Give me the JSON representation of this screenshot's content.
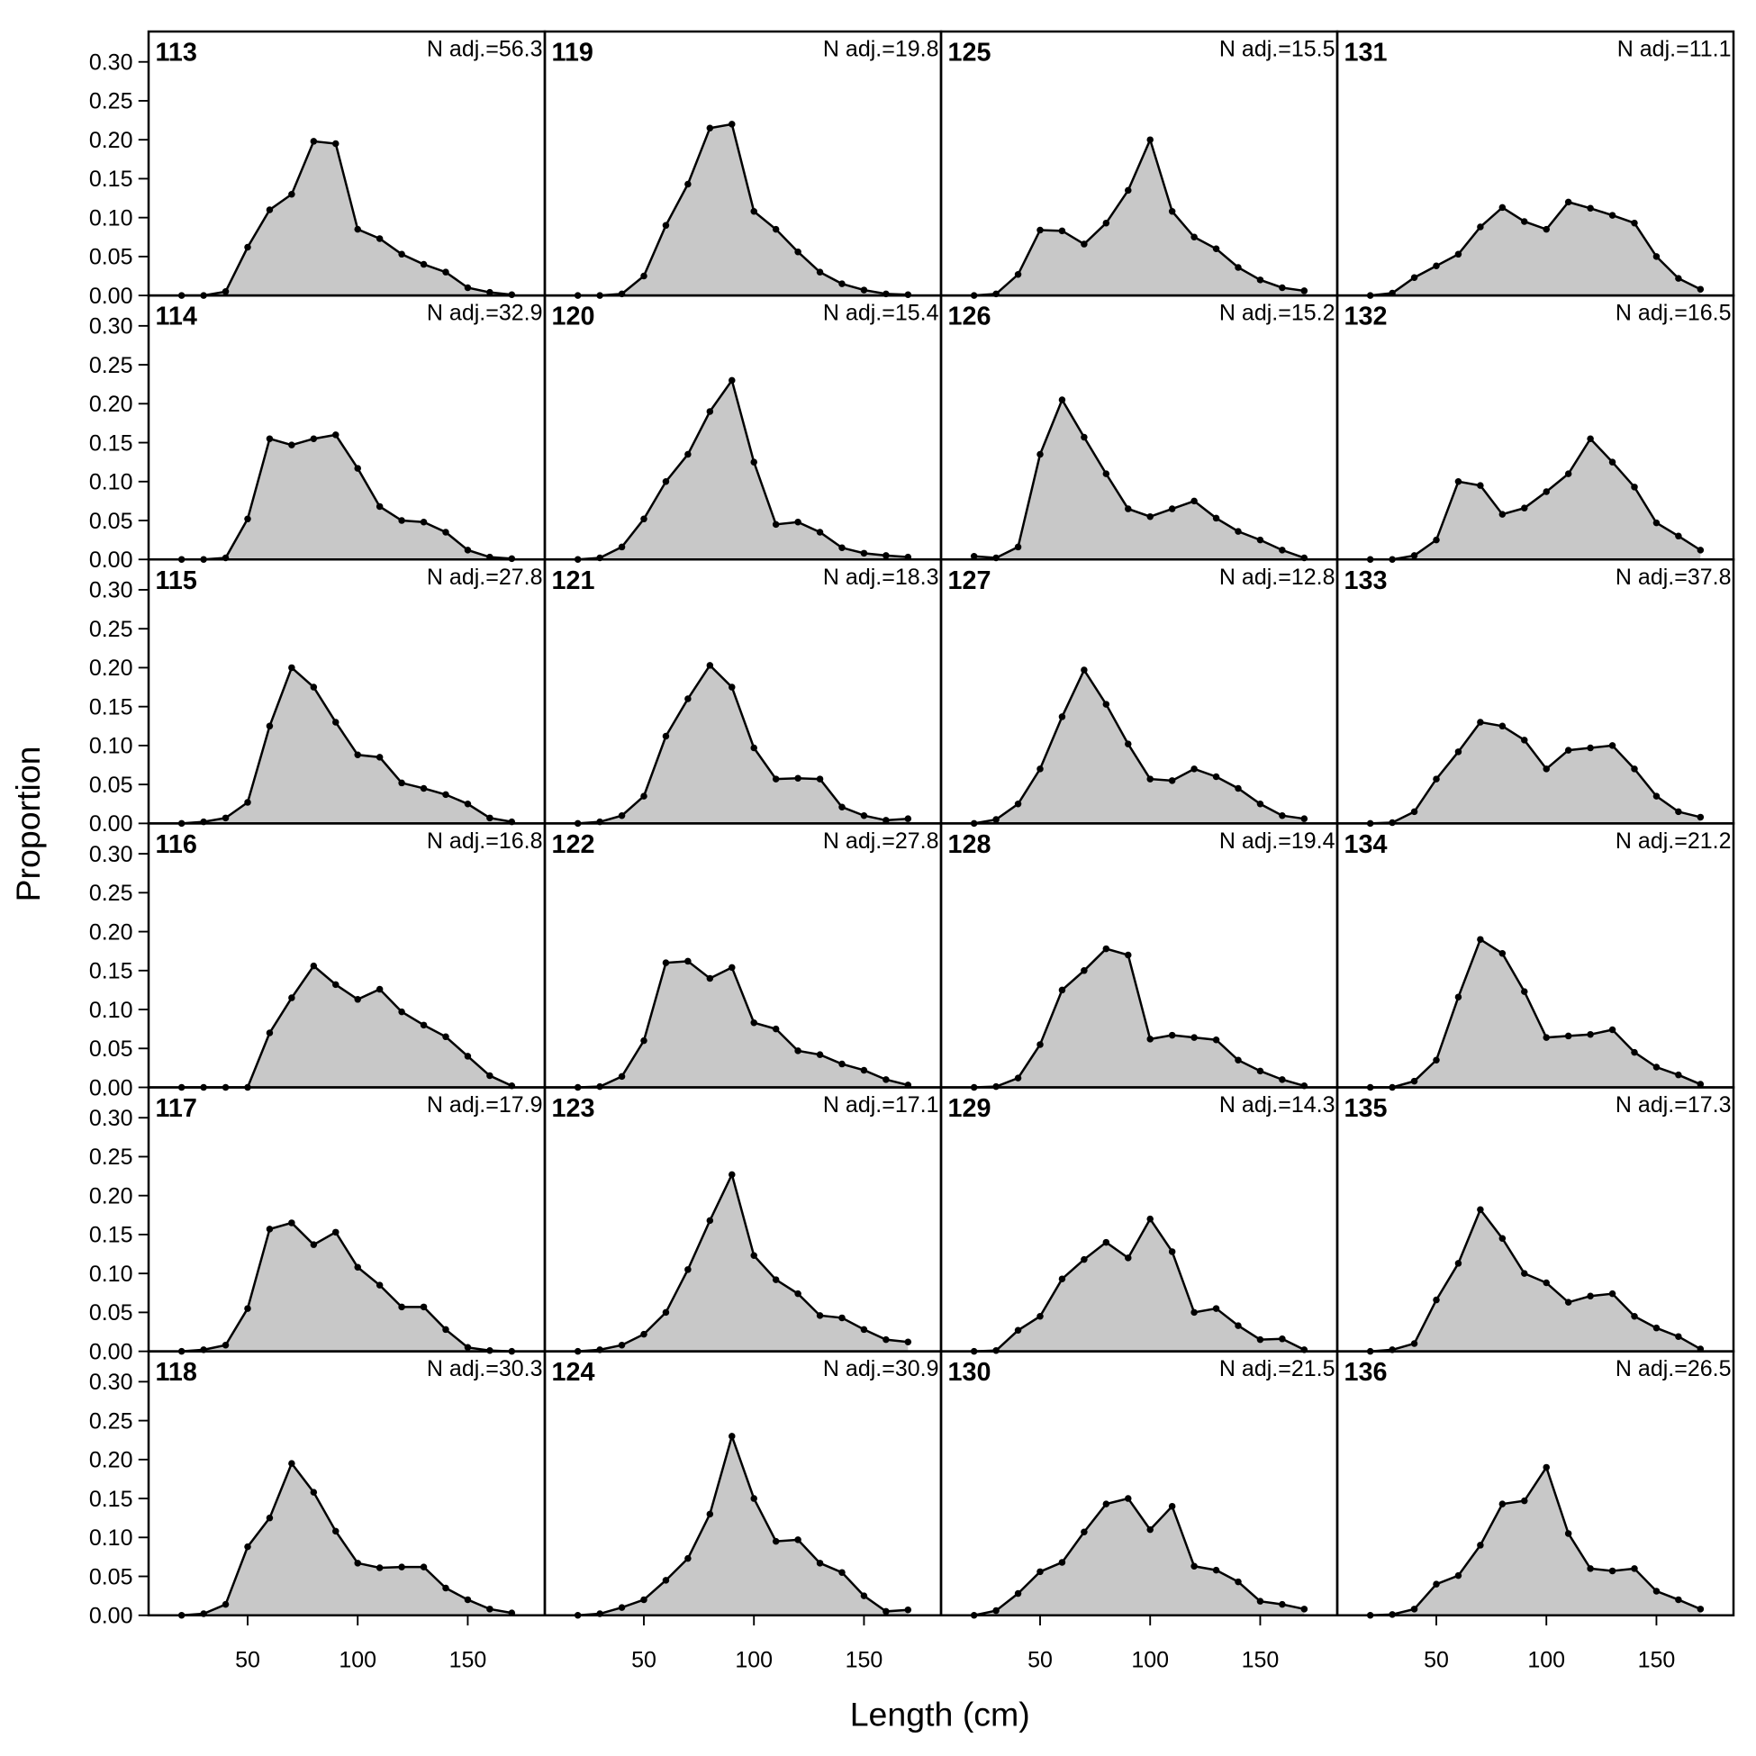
{
  "chart_data": {
    "type": "area",
    "x_label": "Length (cm)",
    "y_label": "Proportion",
    "fill": "#c8c8c8",
    "line_color": "#000000",
    "x": [
      20,
      30,
      40,
      50,
      60,
      70,
      80,
      90,
      100,
      110,
      120,
      130,
      140,
      150,
      160,
      170
    ],
    "xlim": [
      5,
      185
    ],
    "ylim": [
      0,
      0.339
    ],
    "xticks": [
      50,
      100,
      150
    ],
    "yticks": [
      {
        "value": 0,
        "label": "0.00"
      },
      {
        "value": 0.05,
        "label": "0.05"
      },
      {
        "value": 0.1,
        "label": "0.10"
      },
      {
        "value": 0.15,
        "label": "0.15"
      },
      {
        "value": 0.2,
        "label": "0.20"
      },
      {
        "value": 0.25,
        "label": "0.25"
      },
      {
        "value": 0.3,
        "label": "0.30"
      }
    ],
    "panels": [
      {
        "title": "113",
        "annotation": "N adj.=56.3",
        "values": [
          0,
          0,
          0.005,
          0.062,
          0.11,
          0.13,
          0.198,
          0.195,
          0.085,
          0.073,
          0.053,
          0.04,
          0.03,
          0.01,
          0.004,
          0.001
        ]
      },
      {
        "title": "114",
        "annotation": "N adj.=32.9",
        "values": [
          0,
          0,
          0.002,
          0.052,
          0.155,
          0.147,
          0.155,
          0.16,
          0.117,
          0.068,
          0.05,
          0.048,
          0.035,
          0.012,
          0.003,
          0.001
        ]
      },
      {
        "title": "115",
        "annotation": "N adj.=27.8",
        "values": [
          0,
          0.002,
          0.007,
          0.027,
          0.125,
          0.2,
          0.175,
          0.13,
          0.088,
          0.085,
          0.052,
          0.045,
          0.037,
          0.025,
          0.007,
          0.002
        ]
      },
      {
        "title": "116",
        "annotation": "N adj.=16.8",
        "values": [
          0,
          0,
          0,
          0,
          0.07,
          0.115,
          0.156,
          0.132,
          0.113,
          0.126,
          0.097,
          0.08,
          0.065,
          0.04,
          0.015,
          0.002
        ]
      },
      {
        "title": "117",
        "annotation": "N adj.=17.9",
        "values": [
          0,
          0.002,
          0.008,
          0.055,
          0.157,
          0.165,
          0.137,
          0.153,
          0.108,
          0.085,
          0.057,
          0.057,
          0.028,
          0.005,
          0.001,
          0
        ]
      },
      {
        "title": "118",
        "annotation": "N adj.=30.3",
        "values": [
          0,
          0.002,
          0.014,
          0.088,
          0.125,
          0.195,
          0.158,
          0.108,
          0.067,
          0.061,
          0.062,
          0.062,
          0.035,
          0.02,
          0.008,
          0.003
        ]
      },
      {
        "title": "119",
        "annotation": "N adj.=19.8",
        "values": [
          0,
          0,
          0.002,
          0.025,
          0.09,
          0.143,
          0.215,
          0.22,
          0.108,
          0.085,
          0.056,
          0.03,
          0.015,
          0.007,
          0.002,
          0.001
        ]
      },
      {
        "title": "120",
        "annotation": "N adj.=15.4",
        "values": [
          0,
          0.002,
          0.016,
          0.052,
          0.1,
          0.135,
          0.19,
          0.23,
          0.125,
          0.045,
          0.048,
          0.035,
          0.015,
          0.008,
          0.005,
          0.003
        ]
      },
      {
        "title": "121",
        "annotation": "N adj.=18.3",
        "values": [
          0,
          0.002,
          0.01,
          0.035,
          0.112,
          0.16,
          0.203,
          0.175,
          0.097,
          0.057,
          0.058,
          0.057,
          0.021,
          0.01,
          0.004,
          0.006
        ]
      },
      {
        "title": "122",
        "annotation": "N adj.=27.8",
        "values": [
          0,
          0.001,
          0.014,
          0.06,
          0.16,
          0.162,
          0.14,
          0.154,
          0.083,
          0.075,
          0.047,
          0.042,
          0.03,
          0.022,
          0.01,
          0.003
        ]
      },
      {
        "title": "123",
        "annotation": "N adj.=17.1",
        "values": [
          0,
          0.002,
          0.008,
          0.022,
          0.05,
          0.105,
          0.168,
          0.227,
          0.123,
          0.092,
          0.074,
          0.046,
          0.043,
          0.028,
          0.015,
          0.012
        ]
      },
      {
        "title": "124",
        "annotation": "N adj.=30.9",
        "values": [
          0,
          0.002,
          0.01,
          0.02,
          0.045,
          0.073,
          0.13,
          0.23,
          0.15,
          0.095,
          0.097,
          0.067,
          0.055,
          0.025,
          0.005,
          0.007
        ]
      },
      {
        "title": "125",
        "annotation": "N adj.=15.5",
        "values": [
          0,
          0.002,
          0.027,
          0.084,
          0.083,
          0.066,
          0.093,
          0.135,
          0.2,
          0.108,
          0.075,
          0.06,
          0.036,
          0.02,
          0.01,
          0.006
        ]
      },
      {
        "title": "126",
        "annotation": "N adj.=15.2",
        "values": [
          0.004,
          0.002,
          0.016,
          0.135,
          0.205,
          0.157,
          0.11,
          0.065,
          0.055,
          0.065,
          0.075,
          0.053,
          0.036,
          0.025,
          0.012,
          0.002
        ]
      },
      {
        "title": "127",
        "annotation": "N adj.=12.8",
        "values": [
          0,
          0.005,
          0.025,
          0.07,
          0.137,
          0.197,
          0.153,
          0.102,
          0.057,
          0.055,
          0.07,
          0.06,
          0.045,
          0.025,
          0.01,
          0.006
        ]
      },
      {
        "title": "128",
        "annotation": "N adj.=19.4",
        "values": [
          0,
          0.001,
          0.012,
          0.055,
          0.125,
          0.15,
          0.178,
          0.17,
          0.062,
          0.067,
          0.064,
          0.061,
          0.035,
          0.021,
          0.01,
          0.002
        ]
      },
      {
        "title": "129",
        "annotation": "N adj.=14.3",
        "values": [
          0,
          0.001,
          0.027,
          0.045,
          0.093,
          0.118,
          0.14,
          0.12,
          0.17,
          0.128,
          0.05,
          0.055,
          0.033,
          0.015,
          0.016,
          0.002
        ]
      },
      {
        "title": "130",
        "annotation": "N adj.=21.5",
        "values": [
          0,
          0.006,
          0.028,
          0.056,
          0.068,
          0.107,
          0.143,
          0.15,
          0.11,
          0.14,
          0.063,
          0.058,
          0.043,
          0.018,
          0.014,
          0.008
        ]
      },
      {
        "title": "131",
        "annotation": "N adj.=11.1",
        "values": [
          0,
          0.003,
          0.023,
          0.038,
          0.053,
          0.088,
          0.113,
          0.095,
          0.085,
          0.12,
          0.112,
          0.103,
          0.093,
          0.05,
          0.022,
          0.008
        ]
      },
      {
        "title": "132",
        "annotation": "N adj.=16.5",
        "values": [
          0,
          0,
          0.005,
          0.025,
          0.1,
          0.095,
          0.058,
          0.066,
          0.087,
          0.11,
          0.155,
          0.125,
          0.093,
          0.047,
          0.03,
          0.012
        ]
      },
      {
        "title": "133",
        "annotation": "N adj.=37.8",
        "values": [
          0,
          0.001,
          0.015,
          0.057,
          0.092,
          0.13,
          0.125,
          0.107,
          0.07,
          0.094,
          0.097,
          0.1,
          0.07,
          0.035,
          0.015,
          0.008
        ]
      },
      {
        "title": "134",
        "annotation": "N adj.=21.2",
        "values": [
          0,
          0,
          0.008,
          0.035,
          0.116,
          0.19,
          0.172,
          0.123,
          0.064,
          0.066,
          0.068,
          0.074,
          0.045,
          0.026,
          0.016,
          0.004
        ]
      },
      {
        "title": "135",
        "annotation": "N adj.=17.3",
        "values": [
          0,
          0.002,
          0.01,
          0.066,
          0.113,
          0.182,
          0.145,
          0.1,
          0.088,
          0.063,
          0.071,
          0.074,
          0.045,
          0.03,
          0.019,
          0.003
        ]
      },
      {
        "title": "136",
        "annotation": "N adj.=26.5",
        "values": [
          0,
          0.001,
          0.008,
          0.04,
          0.051,
          0.09,
          0.143,
          0.147,
          0.19,
          0.105,
          0.06,
          0.057,
          0.06,
          0.031,
          0.02,
          0.008
        ]
      }
    ]
  }
}
